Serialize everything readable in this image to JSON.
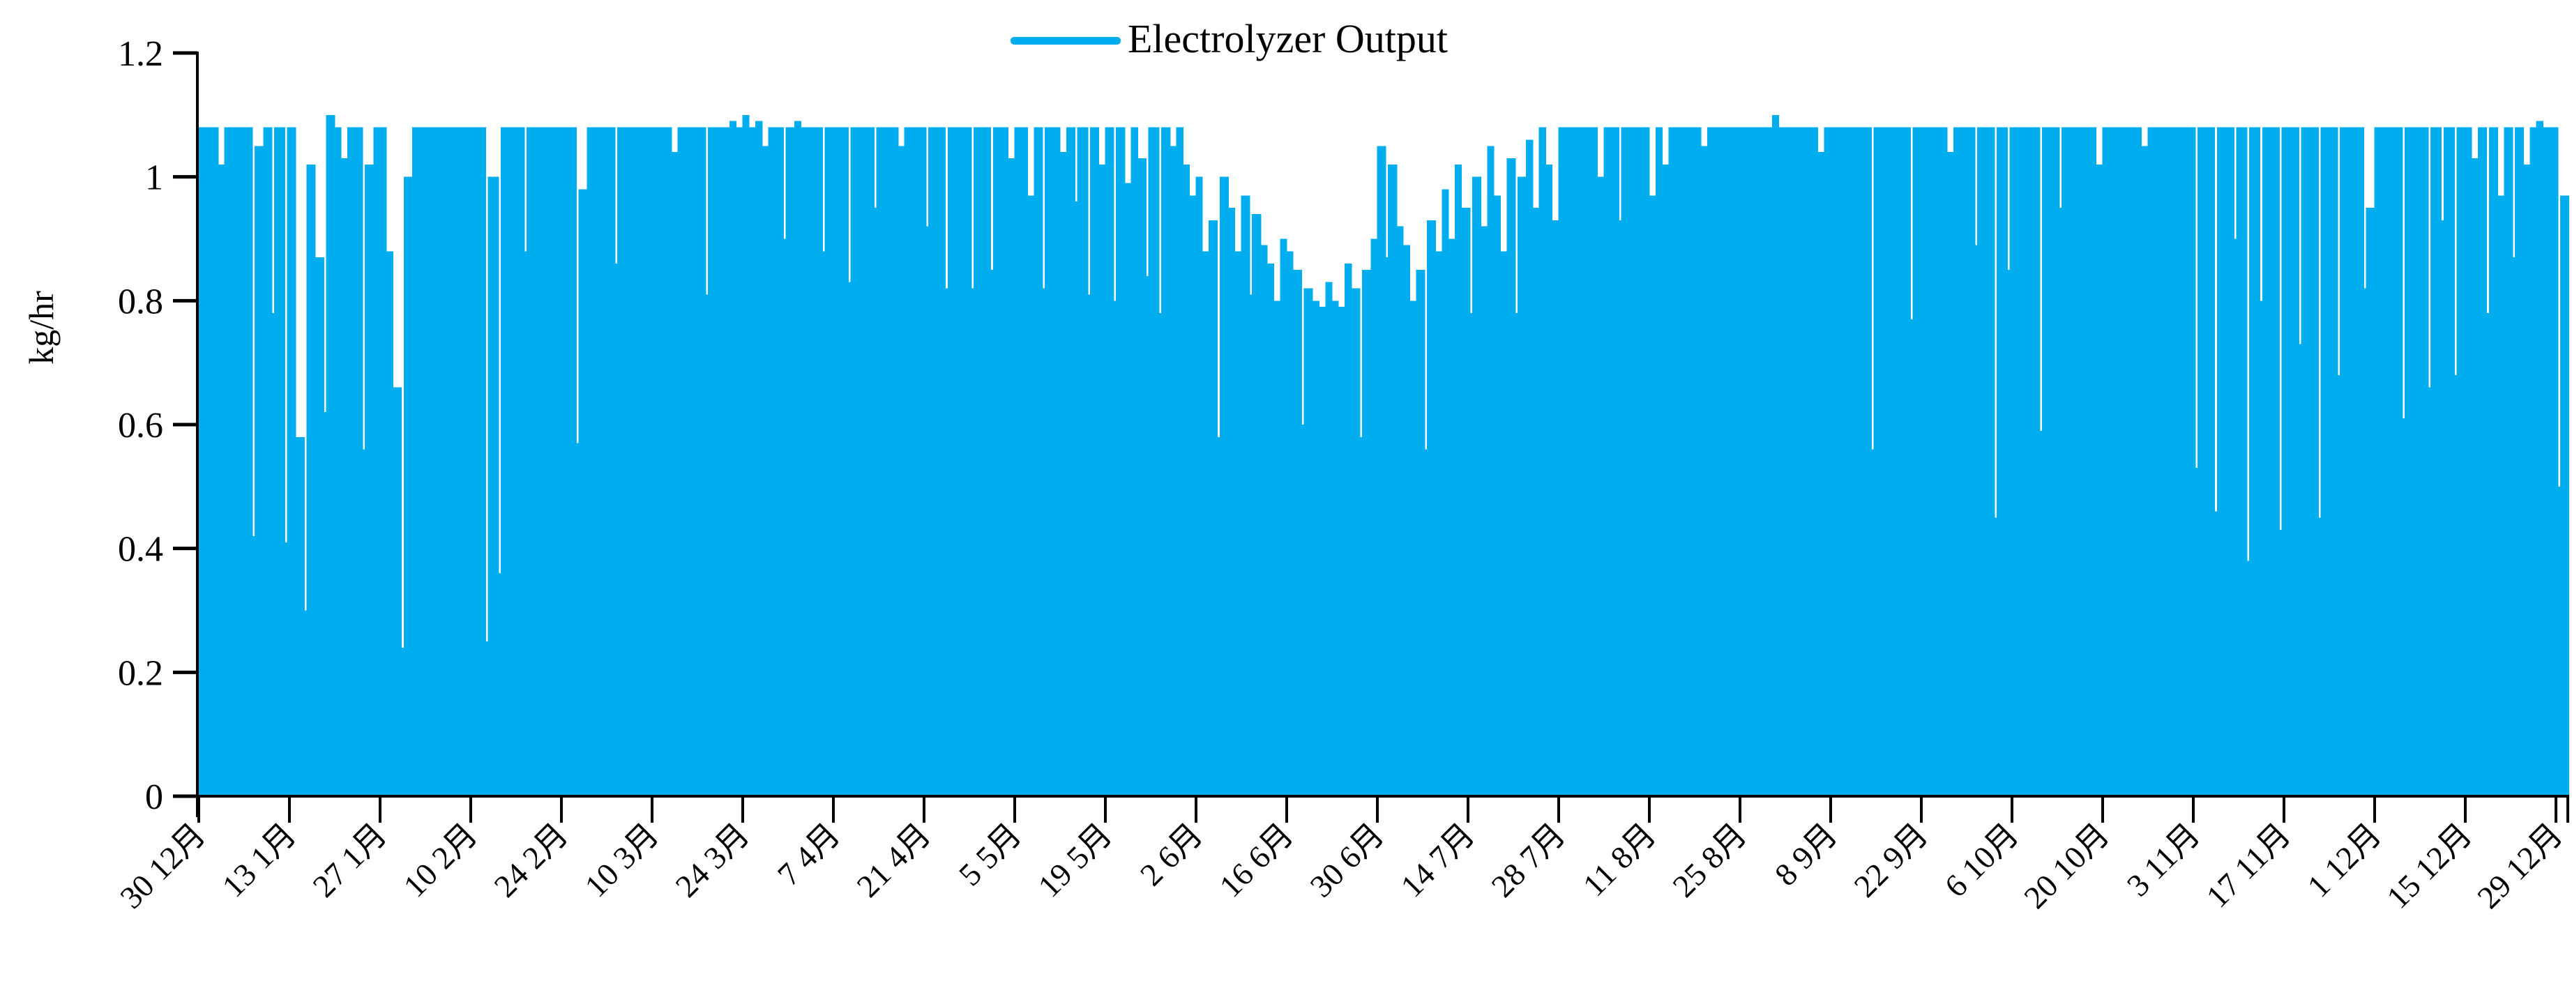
{
  "figure": {
    "background_color": "#FFFFFF",
    "axis_color": "#000000",
    "legend": {
      "label": "Electrolyzer Output",
      "swatch_color": "#00AEEF",
      "position": "top-center"
    }
  },
  "chart_data": {
    "type": "area",
    "title": "",
    "xlabel": "",
    "ylabel": "kg/hr",
    "ylim": [
      0,
      1.2
    ],
    "ytick_values": [
      0,
      0.2,
      0.4,
      0.6,
      0.8,
      1,
      1.2
    ],
    "ytick_labels": [
      "0",
      "0.2",
      "0.4",
      "0.6",
      "0.8",
      "1",
      "1.2"
    ],
    "x_tick_labels": [
      "30 12月",
      "13 1月",
      "27 1月",
      "10 2月",
      "24 2月",
      "10 3月",
      "24 3月",
      "7 4月",
      "21 4月",
      "5 5月",
      "19 5月",
      "2 6月",
      "16 6月",
      "30 6月",
      "14 7月",
      "28 7月",
      "11 8月",
      "25 8月",
      "8 9月",
      "22 9月",
      "6 10月",
      "20 10月",
      "3 11月",
      "17 11月",
      "1 12月",
      "15 12月",
      "29 12月"
    ],
    "x_tick_interval_days": 14,
    "grid": false,
    "legend_position": "top-center",
    "series": [
      {
        "name": "Electrolyzer Output",
        "color": "#00AEEF"
      }
    ],
    "days": 366,
    "base_value_kg_hr": 1.08,
    "daily_value_overrides": {
      "3": 1.02,
      "8": 0.42,
      "9": 1.05,
      "11": 0.78,
      "13": 0.41,
      "15": 0.58,
      "16": 0.3,
      "17": 1.02,
      "18": 0.87,
      "19": 0.62,
      "20": 1.1,
      "22": 1.03,
      "25": 0.56,
      "26": 1.02,
      "29": 0.88,
      "30": 0.66,
      "31": 0.24,
      "32": 1.0,
      "44": 0.25,
      "45": 1.0,
      "46": 0.36,
      "50": 0.88,
      "58": 0.57,
      "59": 0.98,
      "64": 0.86,
      "73": 1.04,
      "78": 0.81,
      "82": 1.09,
      "84": 1.1,
      "86": 1.09,
      "87": 1.05,
      "90": 0.9,
      "92": 1.09,
      "96": 0.88,
      "100": 0.83,
      "104": 0.95,
      "108": 1.05,
      "112": 0.92,
      "115": 0.82,
      "119": 0.82,
      "122": 0.85,
      "125": 1.03,
      "128": 0.97,
      "130": 0.82,
      "133": 1.04,
      "135": 0.96,
      "137": 0.81,
      "139": 1.02,
      "141": 0.8,
      "143": 0.99,
      "145": 1.03,
      "146": 0.84,
      "148": 0.78,
      "150": 1.05,
      "152": 1.02,
      "153": 0.97,
      "154": 1.0,
      "155": 0.88,
      "156": 0.93,
      "157": 0.58,
      "158": 1.0,
      "159": 0.95,
      "160": 0.88,
      "161": 0.97,
      "162": 0.81,
      "163": 0.94,
      "164": 0.89,
      "165": 0.86,
      "166": 0.8,
      "167": 0.9,
      "168": 0.88,
      "169": 0.85,
      "170": 0.6,
      "171": 0.82,
      "172": 0.8,
      "173": 0.79,
      "174": 0.83,
      "175": 0.8,
      "176": 0.79,
      "177": 0.86,
      "178": 0.82,
      "179": 0.58,
      "180": 0.85,
      "181": 0.9,
      "182": 1.05,
      "183": 0.87,
      "184": 1.02,
      "185": 0.92,
      "186": 0.89,
      "187": 0.8,
      "188": 0.85,
      "189": 0.56,
      "190": 0.93,
      "191": 0.88,
      "192": 0.98,
      "193": 0.9,
      "194": 1.02,
      "195": 0.95,
      "196": 0.78,
      "197": 1.0,
      "198": 0.92,
      "199": 1.05,
      "200": 0.97,
      "201": 0.88,
      "202": 1.03,
      "203": 0.78,
      "204": 1.0,
      "205": 1.06,
      "206": 0.95,
      "208": 1.02,
      "209": 0.93,
      "216": 1.0,
      "219": 0.93,
      "224": 0.97,
      "226": 1.02,
      "232": 1.05,
      "243": 1.1,
      "250": 1.04,
      "258": 0.56,
      "264": 0.77,
      "270": 1.04,
      "274": 0.89,
      "277": 0.45,
      "279": 0.85,
      "284": 0.59,
      "287": 0.95,
      "293": 1.02,
      "300": 1.05,
      "308": 0.53,
      "311": 0.46,
      "314": 0.9,
      "316": 0.38,
      "318": 0.8,
      "321": 0.43,
      "324": 0.73,
      "327": 0.45,
      "330": 0.68,
      "334": 0.82,
      "335": 0.95,
      "340": 0.61,
      "344": 0.66,
      "346": 0.93,
      "348": 0.68,
      "351": 1.03,
      "353": 0.78,
      "355": 0.97,
      "357": 0.87,
      "359": 1.02,
      "361": 1.09,
      "364": 0.5,
      "365": 0.97
    }
  }
}
